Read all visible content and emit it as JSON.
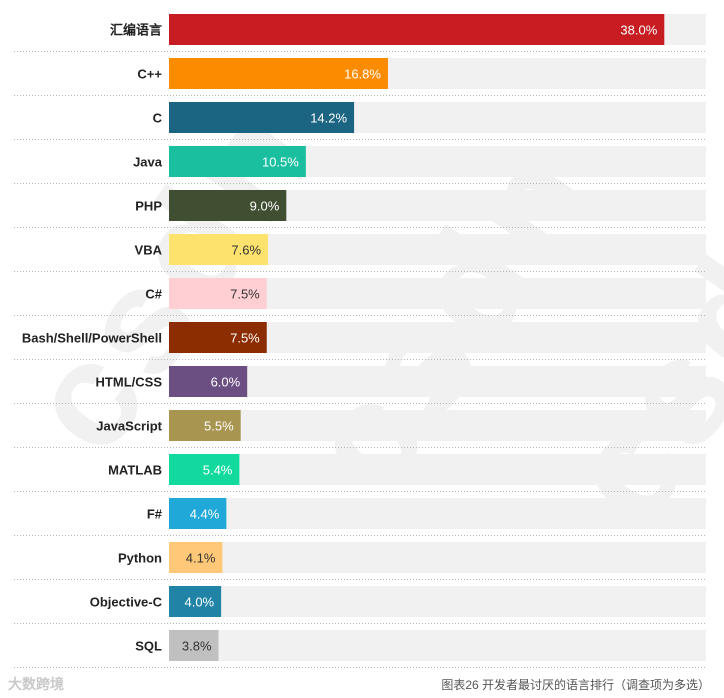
{
  "chart_data": {
    "type": "bar",
    "orientation": "horizontal",
    "categories": [
      "汇编语言",
      "C++",
      "C",
      "Java",
      "PHP",
      "VBA",
      "C#",
      "Bash/Shell/PowerShell",
      "HTML/CSS",
      "JavaScript",
      "MATLAB",
      "F#",
      "Python",
      "Objective-C",
      "SQL"
    ],
    "values": [
      38.0,
      16.8,
      14.2,
      10.5,
      9.0,
      7.6,
      7.5,
      7.5,
      6.0,
      5.5,
      5.4,
      4.4,
      4.1,
      4.0,
      3.8
    ],
    "value_labels": [
      "38.0%",
      "16.8%",
      "14.2%",
      "10.5%",
      "9.0%",
      "7.6%",
      "7.5%",
      "7.5%",
      "6.0%",
      "5.5%",
      "5.4%",
      "4.4%",
      "4.1%",
      "4.0%",
      "3.8%"
    ],
    "colors": [
      "#c71c22",
      "#fb8c00",
      "#1b6583",
      "#1abf9f",
      "#404e32",
      "#fde26e",
      "#ffcfd3",
      "#8b2d00",
      "#6c4f82",
      "#a89550",
      "#12d99e",
      "#1fa8d8",
      "#ffc878",
      "#2184a6",
      "#c0c0c0"
    ],
    "label_colors": [
      "#ffffff",
      "#ffffff",
      "#ffffff",
      "#ffffff",
      "#ffffff",
      "#333333",
      "#333333",
      "#ffffff",
      "#ffffff",
      "#ffffff",
      "#ffffff",
      "#ffffff",
      "#333333",
      "#ffffff",
      "#333333"
    ],
    "xlim": [
      0,
      41.2
    ],
    "unit": "%",
    "track_color": "#f1f1f1"
  },
  "footer": {
    "logo_text": "大数跨境",
    "caption": "图表26 开发者最讨厌的语言排行（调查项为多选）"
  },
  "watermark": {
    "text": "csdn"
  }
}
